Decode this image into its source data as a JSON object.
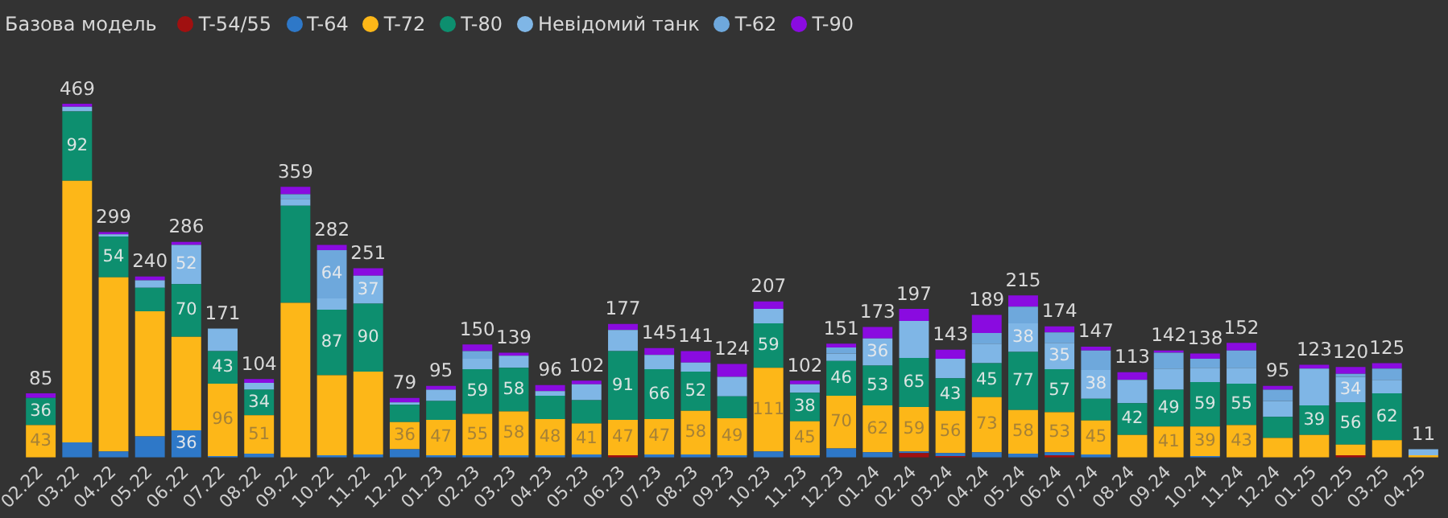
{
  "chart_data": {
    "type": "bar",
    "stacked": true,
    "legend_title": "Базова модель",
    "legend": "top left",
    "grid": false,
    "tick_labels": "x",
    "categories": [
      "02.22",
      "03.22",
      "04.22",
      "05.22",
      "06.22",
      "07.22",
      "08.22",
      "09.22",
      "10.22",
      "11.22",
      "12.22",
      "01.23",
      "02.23",
      "03.23",
      "04.23",
      "05.23",
      "06.23",
      "07.23",
      "08.23",
      "09.23",
      "10.23",
      "11.23",
      "12.23",
      "01.24",
      "02.24",
      "03.24",
      "04.24",
      "05.24",
      "06.24",
      "07.24",
      "08.24",
      "09.24",
      "10.24",
      "11.24",
      "12.24",
      "01.25",
      "02.25",
      "03.25",
      "04.25"
    ],
    "series": [
      {
        "name": "T-54/55",
        "color": "#a01010",
        "values": [
          0,
          0,
          0,
          0,
          0,
          0,
          0,
          0,
          0,
          0,
          0,
          0,
          0,
          0,
          0,
          0,
          3,
          0,
          0,
          0,
          0,
          0,
          0,
          0,
          6,
          2,
          0,
          0,
          3,
          0,
          0,
          0,
          0,
          0,
          0,
          0,
          3,
          0,
          0
        ]
      },
      {
        "name": "T-64",
        "color": "#2e78c8",
        "values": [
          0,
          20,
          8,
          28,
          36,
          2,
          5,
          0,
          3,
          4,
          11,
          3,
          3,
          3,
          3,
          4,
          0,
          4,
          4,
          3,
          8,
          3,
          12,
          7,
          2,
          4,
          7,
          5,
          4,
          4,
          0,
          0,
          2,
          0,
          0,
          0,
          0,
          0,
          0
        ],
        "value_labels": [
          null,
          null,
          null,
          null,
          "36",
          null,
          null,
          null,
          null,
          null,
          null,
          null,
          null,
          null,
          null,
          null,
          null,
          null,
          null,
          null,
          null,
          null,
          null,
          null,
          null,
          null,
          null,
          null,
          null,
          null,
          null,
          null,
          null,
          null,
          null,
          null,
          null,
          null,
          null
        ]
      },
      {
        "name": "T-72",
        "color": "#fdb718",
        "values": [
          43,
          347,
          231,
          166,
          124,
          96,
          51,
          205,
          106,
          110,
          36,
          47,
          55,
          58,
          48,
          41,
          47,
          47,
          58,
          49,
          111,
          45,
          70,
          62,
          59,
          56,
          73,
          58,
          53,
          45,
          30,
          41,
          39,
          43,
          26,
          30,
          14,
          23,
          3
        ],
        "value_labels": [
          "43",
          null,
          null,
          null,
          null,
          "96",
          "51",
          null,
          null,
          null,
          "36",
          "47",
          "55",
          "58",
          "48",
          "41",
          "47",
          "47",
          "58",
          "49",
          "111",
          "45",
          "70",
          "62",
          "59",
          "56",
          "73",
          "58",
          "53",
          "45",
          null,
          "41",
          "39",
          "43",
          null,
          null,
          null,
          null,
          null
        ]
      },
      {
        "name": "T-80",
        "color": "#0d8f6f",
        "values": [
          36,
          92,
          54,
          31,
          70,
          43,
          34,
          129,
          87,
          90,
          23,
          25,
          59,
          58,
          31,
          31,
          91,
          66,
          52,
          29,
          59,
          38,
          46,
          53,
          65,
          43,
          45,
          77,
          57,
          29,
          42,
          49,
          59,
          55,
          28,
          39,
          56,
          62,
          0
        ],
        "value_labels": [
          "36",
          "92",
          "54",
          null,
          "70",
          "43",
          "34",
          null,
          "87",
          "90",
          null,
          null,
          "59",
          "58",
          null,
          null,
          "91",
          "66",
          "52",
          null,
          "59",
          "38",
          "46",
          "53",
          "65",
          "43",
          "45",
          "77",
          "57",
          null,
          "42",
          "49",
          "59",
          "55",
          null,
          "39",
          "56",
          "62",
          null
        ]
      },
      {
        "name": "Невідомий танк",
        "color": "#7fb6e6",
        "values": [
          0,
          6,
          3,
          10,
          52,
          30,
          9,
          9,
          15,
          37,
          3,
          15,
          14,
          16,
          6,
          21,
          28,
          19,
          12,
          26,
          19,
          11,
          10,
          36,
          49,
          26,
          26,
          38,
          35,
          38,
          31,
          28,
          19,
          21,
          21,
          49,
          34,
          18,
          8
        ],
        "value_labels": [
          null,
          null,
          null,
          null,
          "52",
          null,
          null,
          null,
          null,
          "37",
          null,
          null,
          null,
          null,
          null,
          null,
          null,
          null,
          null,
          null,
          null,
          null,
          null,
          "36",
          null,
          null,
          null,
          "38",
          "35",
          "38",
          null,
          null,
          null,
          null,
          null,
          null,
          "34",
          null,
          null
        ]
      },
      {
        "name": "T-62",
        "color": "#6ea8dc",
        "values": [
          0,
          0,
          0,
          0,
          0,
          0,
          0,
          6,
          64,
          0,
          0,
          0,
          10,
          0,
          0,
          0,
          0,
          0,
          0,
          0,
          0,
          0,
          8,
          0,
          0,
          0,
          14,
          22,
          14,
          26,
          0,
          21,
          12,
          23,
          15,
          0,
          4,
          15,
          0
        ],
        "value_labels": [
          null,
          null,
          null,
          null,
          null,
          null,
          null,
          null,
          "64",
          null,
          null,
          null,
          null,
          null,
          null,
          null,
          null,
          null,
          null,
          null,
          null,
          null,
          null,
          null,
          null,
          null,
          null,
          null,
          null,
          null,
          null,
          null,
          null,
          null,
          null,
          null,
          null,
          null,
          null
        ]
      },
      {
        "name": "T-90",
        "color": "#8a0be0",
        "values": [
          6,
          4,
          3,
          5,
          4,
          0,
          5,
          10,
          7,
          10,
          6,
          5,
          9,
          4,
          8,
          5,
          8,
          9,
          15,
          17,
          10,
          5,
          5,
          15,
          16,
          12,
          24,
          15,
          8,
          5,
          10,
          3,
          7,
          10,
          5,
          5,
          9,
          7,
          0
        ]
      }
    ],
    "totals": [
      "85",
      "469",
      "299",
      "240",
      "286",
      "171",
      "104",
      "359",
      "282",
      "251",
      "79",
      "95",
      "150",
      "139",
      "96",
      "102",
      "177",
      "145",
      "141",
      "124",
      "207",
      "102",
      "151",
      "173",
      "197",
      "143",
      "189",
      "215",
      "174",
      "147",
      "113",
      "142",
      "138",
      "152",
      "95",
      "123",
      "120",
      "125",
      "11"
    ]
  }
}
